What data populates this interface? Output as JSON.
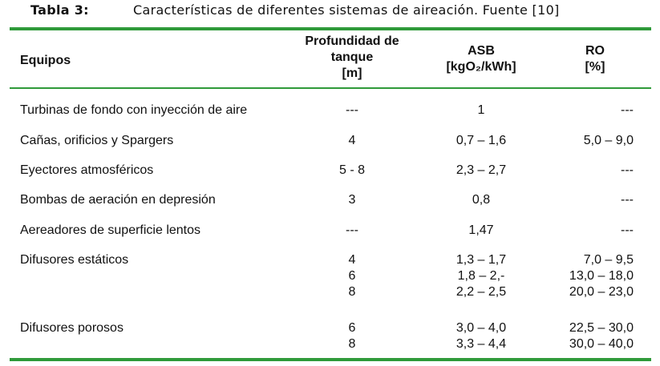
{
  "caption": {
    "label": "Tabla 3:",
    "text": "Características de diferentes sistemas de aireación. Fuente [10]"
  },
  "headers": {
    "equipos": "Equipos",
    "profundidad": [
      "Profundidad de",
      "tanque",
      "[m]"
    ],
    "asb": [
      "ASB",
      "[kgO₂/kWh]"
    ],
    "ro": [
      "RO",
      "[%]"
    ]
  },
  "rows": [
    {
      "equipo": "Turbinas de fondo con inyección de aire",
      "profundidad": [
        "---"
      ],
      "asb": [
        "1"
      ],
      "ro": [
        "---"
      ]
    },
    {
      "equipo": "Cañas, orificios y Spargers",
      "profundidad": [
        "4"
      ],
      "asb": [
        "0,7 – 1,6"
      ],
      "ro": [
        "5,0 – 9,0"
      ]
    },
    {
      "equipo": "Eyectores atmosféricos",
      "profundidad": [
        "5 - 8"
      ],
      "asb": [
        "2,3 – 2,7"
      ],
      "ro": [
        "---"
      ]
    },
    {
      "equipo": "Bombas de aeración en depresión",
      "profundidad": [
        "3"
      ],
      "asb": [
        "0,8"
      ],
      "ro": [
        "---"
      ]
    },
    {
      "equipo": "Aereadores de superficie lentos",
      "profundidad": [
        "---"
      ],
      "asb": [
        "1,47"
      ],
      "ro": [
        "---"
      ]
    },
    {
      "equipo": "Difusores estáticos",
      "profundidad": [
        "4",
        "6",
        "8"
      ],
      "asb": [
        "1,3 – 1,7",
        "1,8 – 2,-",
        "2,2 – 2,5"
      ],
      "ro": [
        "7,0 – 9,5",
        "13,0 – 18,0",
        "20,0 – 23,0"
      ]
    },
    {
      "equipo": "Difusores porosos",
      "profundidad": [
        "6",
        "8"
      ],
      "asb": [
        "3,0 – 4,0",
        "3,3 – 4,4"
      ],
      "ro": [
        "22,5 – 30,0",
        "30,0 – 40,0"
      ]
    }
  ]
}
